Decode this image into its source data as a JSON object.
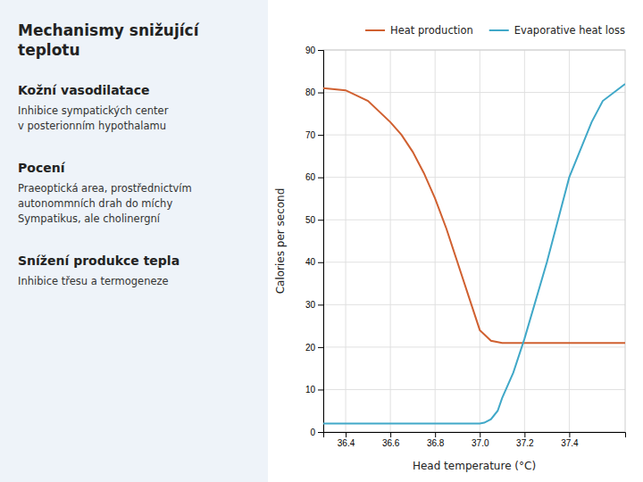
{
  "chart_data": {
    "type": "line",
    "title": "Mechanismy snižující teplotu",
    "annotations": [
      {
        "heading": "Kožní vasodilatace",
        "text": "Inhibice sympatických center\nv posterionním hypothalamu"
      },
      {
        "heading": "Pocení",
        "text": "Praeoptická area, prostřednictvím\nautonommních drah do míchy\nSympatikus, ale cholinergní"
      },
      {
        "heading": "Snížení produkce tepla",
        "text": "Inhibice třesu a termogeneze"
      }
    ],
    "xlabel": "Head temperature (°C)",
    "ylabel": "Calories per second",
    "xlim": [
      36.3,
      37.65
    ],
    "ylim": [
      0,
      90
    ],
    "xticks": [
      36.4,
      36.6,
      36.8,
      {
        "value": 37.0,
        "label": "37.0"
      },
      37.2,
      37.4
    ],
    "yticks": [
      0,
      10,
      20,
      30,
      40,
      50,
      60,
      70,
      80,
      90
    ],
    "grid": true,
    "legend": "upper-right",
    "series": [
      {
        "name": "Heat production",
        "color": "#d06030",
        "x": [
          36.3,
          36.4,
          36.5,
          36.6,
          36.65,
          36.7,
          36.75,
          36.8,
          36.85,
          36.9,
          36.95,
          37.0,
          37.05,
          37.1,
          37.15,
          37.2,
          37.4,
          37.65
        ],
        "values": [
          81,
          80.5,
          78,
          73,
          70,
          66,
          61,
          55,
          48,
          40,
          32,
          24,
          21.5,
          21,
          21,
          21,
          21,
          21
        ]
      },
      {
        "name": "Evaporative heat loss",
        "color": "#40a8c8",
        "x": [
          36.3,
          36.9,
          36.95,
          37.0,
          37.02,
          37.05,
          37.08,
          37.1,
          37.15,
          37.2,
          37.3,
          37.4,
          37.5,
          37.55,
          37.65
        ],
        "values": [
          2,
          2,
          2,
          2,
          2.2,
          3,
          5,
          8,
          14,
          22,
          40,
          60,
          73,
          78,
          82
        ]
      }
    ]
  }
}
